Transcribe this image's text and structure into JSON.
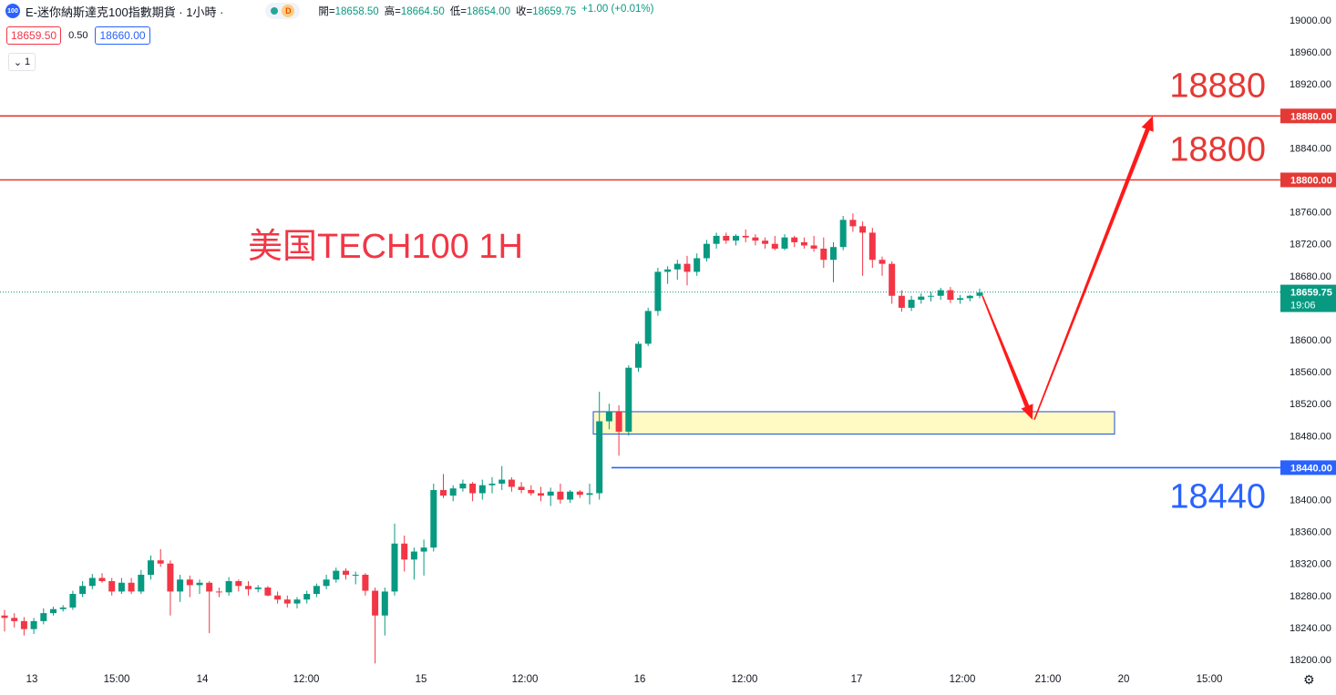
{
  "header": {
    "symbol_badge": "100",
    "title": "E-迷你納斯達克100指數期貨 · 1小時 ·",
    "status_badge": "D",
    "ohlc": [
      {
        "label": "開=",
        "value": "18658.50"
      },
      {
        "label": "高=",
        "value": "18664.50"
      },
      {
        "label": "低=",
        "value": "18654.00"
      },
      {
        "label": "收=",
        "value": "18659.75"
      },
      {
        "label": "",
        "value": "+1.00 (+0.01%)"
      }
    ]
  },
  "quote": {
    "bid": "18659.50",
    "spread": "0.50",
    "ask": "18660.00"
  },
  "indicator_toggle": {
    "icon": "chevron-down-icon",
    "count": "1"
  },
  "colors": {
    "up": "#089981",
    "down": "#f23645",
    "red_line": "#e53935",
    "blue_line": "#2962ff",
    "zone_fill": "#fff9c4",
    "zone_border": "#1e4fd1",
    "arrow": "#ff1a1a"
  },
  "chart_data": {
    "type": "candlestick",
    "title": "美国TECH100 1H",
    "x_tick_labels": [
      "13",
      "15:00",
      "14",
      "12:00",
      "15",
      "12:00",
      "16",
      "12:00",
      "17",
      "12:00",
      "21:00",
      "20",
      "15:00"
    ],
    "y_tick_labels": [
      "19000.00",
      "18960.00",
      "18920.00",
      "18840.00",
      "18760.00",
      "18720.00",
      "18680.00",
      "18600.00",
      "18560.00",
      "18520.00",
      "18480.00",
      "18400.00",
      "18360.00",
      "18320.00",
      "18280.00",
      "18240.00",
      "18200.00"
    ],
    "ylim": [
      18195,
      19010
    ],
    "current_price": {
      "value": 18659.75,
      "label": "18659.75",
      "countdown": "19:06"
    },
    "horizontal_lines": [
      {
        "value": 18880,
        "label": "18880.00",
        "annotation": "18880",
        "color": "red"
      },
      {
        "value": 18800,
        "label": "18800.00",
        "annotation": "18800",
        "color": "red"
      },
      {
        "value": 18440,
        "label": "18440.00",
        "annotation": "18440",
        "color": "blue"
      }
    ],
    "zone": {
      "low": 18482,
      "high": 18510
    },
    "projection_path": [
      18655,
      18500,
      18880
    ],
    "candles": [
      [
        18255,
        18262,
        18235,
        18252
      ],
      [
        18252,
        18258,
        18240,
        18248
      ],
      [
        18248,
        18253,
        18230,
        18238
      ],
      [
        18238,
        18252,
        18232,
        18248
      ],
      [
        18248,
        18264,
        18244,
        18258
      ],
      [
        18258,
        18266,
        18255,
        18263
      ],
      [
        18263,
        18268,
        18260,
        18265
      ],
      [
        18265,
        18286,
        18262,
        18282
      ],
      [
        18282,
        18298,
        18278,
        18292
      ],
      [
        18292,
        18307,
        18288,
        18302
      ],
      [
        18302,
        18308,
        18296,
        18298
      ],
      [
        18298,
        18302,
        18280,
        18285
      ],
      [
        18285,
        18302,
        18282,
        18296
      ],
      [
        18296,
        18302,
        18282,
        18285
      ],
      [
        18285,
        18312,
        18282,
        18306
      ],
      [
        18306,
        18330,
        18300,
        18324
      ],
      [
        18324,
        18338,
        18316,
        18320
      ],
      [
        18320,
        18324,
        18255,
        18285
      ],
      [
        18285,
        18306,
        18272,
        18300
      ],
      [
        18300,
        18305,
        18278,
        18293
      ],
      [
        18293,
        18300,
        18282,
        18296
      ],
      [
        18296,
        18298,
        18233,
        18285
      ],
      [
        18285,
        18290,
        18278,
        18284
      ],
      [
        18284,
        18303,
        18280,
        18298
      ],
      [
        18298,
        18300,
        18285,
        18292
      ],
      [
        18292,
        18298,
        18280,
        18288
      ],
      [
        18288,
        18293,
        18284,
        18290
      ],
      [
        18290,
        18292,
        18279,
        18280
      ],
      [
        18280,
        18285,
        18270,
        18275
      ],
      [
        18275,
        18280,
        18265,
        18270
      ],
      [
        18270,
        18278,
        18264,
        18275
      ],
      [
        18275,
        18286,
        18270,
        18282
      ],
      [
        18282,
        18295,
        18278,
        18292
      ],
      [
        18292,
        18306,
        18288,
        18300
      ],
      [
        18300,
        18315,
        18296,
        18311
      ],
      [
        18311,
        18314,
        18300,
        18306
      ],
      [
        18306,
        18310,
        18294,
        18306
      ],
      [
        18306,
        18308,
        18280,
        18286
      ],
      [
        18286,
        18290,
        18195,
        18255
      ],
      [
        18255,
        18290,
        18230,
        18285
      ],
      [
        18285,
        18370,
        18280,
        18345
      ],
      [
        18345,
        18355,
        18310,
        18325
      ],
      [
        18325,
        18340,
        18300,
        18335
      ],
      [
        18335,
        18350,
        18305,
        18340
      ],
      [
        18340,
        18420,
        18335,
        18412
      ],
      [
        18412,
        18432,
        18402,
        18405
      ],
      [
        18405,
        18418,
        18398,
        18414
      ],
      [
        18414,
        18425,
        18410,
        18420
      ],
      [
        18420,
        18422,
        18398,
        18408
      ],
      [
        18408,
        18425,
        18400,
        18418
      ],
      [
        18418,
        18428,
        18408,
        18420
      ],
      [
        18420,
        18442,
        18412,
        18425
      ],
      [
        18425,
        18428,
        18410,
        18416
      ],
      [
        18416,
        18422,
        18408,
        18412
      ],
      [
        18412,
        18418,
        18405,
        18408
      ],
      [
        18408,
        18416,
        18398,
        18405
      ],
      [
        18405,
        18415,
        18392,
        18410
      ],
      [
        18410,
        18420,
        18395,
        18400
      ],
      [
        18400,
        18412,
        18396,
        18410
      ],
      [
        18410,
        18412,
        18402,
        18406
      ],
      [
        18406,
        18420,
        18394,
        18408
      ],
      [
        18408,
        18535,
        18400,
        18498
      ],
      [
        18498,
        18520,
        18488,
        18510
      ],
      [
        18510,
        18518,
        18455,
        18485
      ],
      [
        18485,
        18568,
        18480,
        18565
      ],
      [
        18565,
        18598,
        18560,
        18595
      ],
      [
        18595,
        18640,
        18592,
        18636
      ],
      [
        18636,
        18690,
        18630,
        18685
      ],
      [
        18685,
        18692,
        18670,
        18688
      ],
      [
        18688,
        18700,
        18675,
        18695
      ],
      [
        18695,
        18705,
        18668,
        18685
      ],
      [
        18685,
        18708,
        18680,
        18702
      ],
      [
        18702,
        18725,
        18698,
        18720
      ],
      [
        18720,
        18734,
        18714,
        18730
      ],
      [
        18730,
        18734,
        18720,
        18724
      ],
      [
        18724,
        18732,
        18718,
        18730
      ],
      [
        18730,
        18738,
        18722,
        18728
      ],
      [
        18728,
        18732,
        18718,
        18724
      ],
      [
        18724,
        18728,
        18714,
        18720
      ],
      [
        18720,
        18730,
        18712,
        18714
      ],
      [
        18714,
        18732,
        18712,
        18728
      ],
      [
        18728,
        18730,
        18716,
        18722
      ],
      [
        18722,
        18728,
        18714,
        18718
      ],
      [
        18718,
        18730,
        18710,
        18714
      ],
      [
        18714,
        18728,
        18690,
        18700
      ],
      [
        18700,
        18722,
        18672,
        18716
      ],
      [
        18716,
        18755,
        18712,
        18750
      ],
      [
        18750,
        18758,
        18735,
        18742
      ],
      [
        18742,
        18748,
        18680,
        18734
      ],
      [
        18734,
        18740,
        18690,
        18700
      ],
      [
        18700,
        18704,
        18680,
        18695
      ],
      [
        18695,
        18698,
        18645,
        18655
      ],
      [
        18655,
        18662,
        18635,
        18640
      ],
      [
        18640,
        18655,
        18636,
        18650
      ],
      [
        18650,
        18658,
        18645,
        18654
      ],
      [
        18654,
        18660,
        18648,
        18655
      ],
      [
        18655,
        18665,
        18650,
        18662
      ],
      [
        18662,
        18666,
        18646,
        18650
      ],
      [
        18650,
        18656,
        18645,
        18652
      ],
      [
        18652,
        18656,
        18648,
        18655
      ],
      [
        18655,
        18664,
        18652,
        18659
      ]
    ]
  }
}
